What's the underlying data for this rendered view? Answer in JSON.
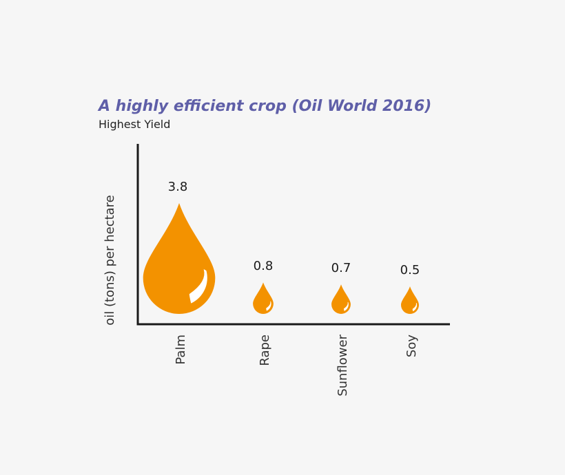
{
  "colors": {
    "drop": "#f39200",
    "highlight": "#ffffff",
    "axis": "#1a1a1a",
    "title": "#5f5fa8"
  },
  "chart_data": {
    "type": "bar",
    "title": "A highly efficient crop (Oil World 2016)",
    "subtitle": "Highest Yield",
    "ylabel": "oil (tons) per hectare",
    "xlabel": "",
    "marker": "oil-drop",
    "categories": [
      "Palm",
      "Rape",
      "Sunflower",
      "Soy"
    ],
    "values": [
      3.8,
      0.8,
      0.7,
      0.5
    ],
    "value_labels": [
      "3.8",
      "0.8",
      "0.7",
      "0.5"
    ],
    "grid": false,
    "legend": "none"
  }
}
